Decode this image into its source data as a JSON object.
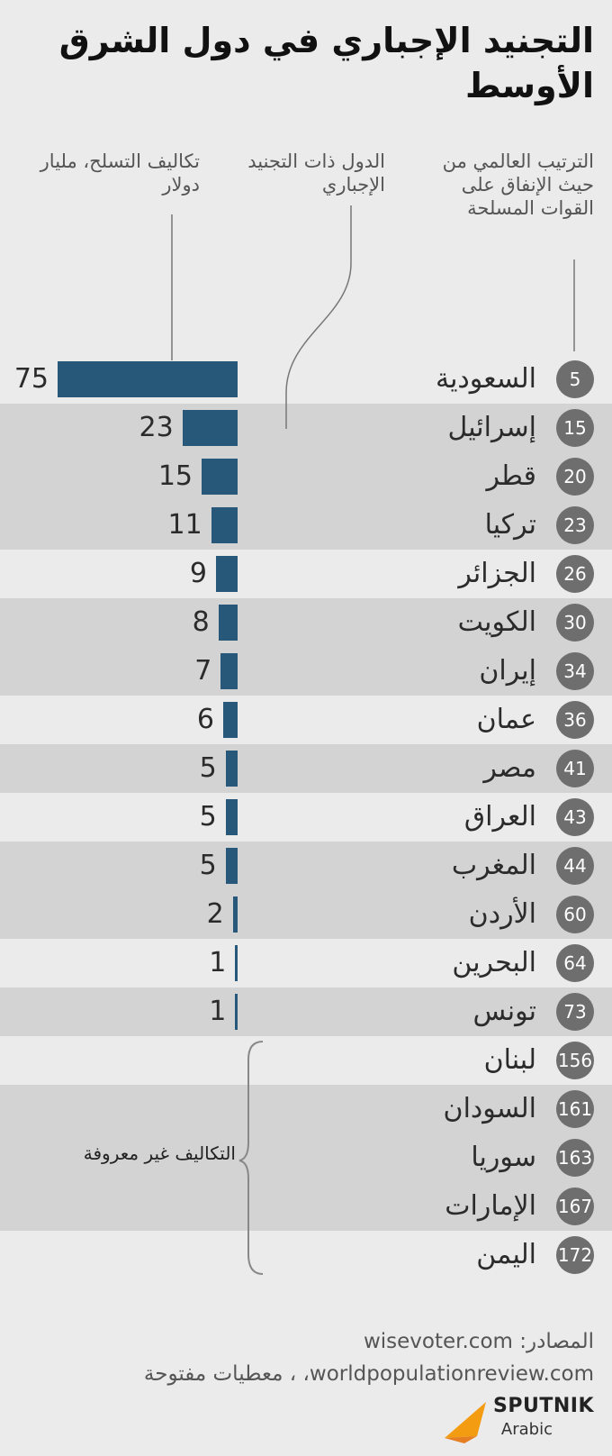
{
  "title": "التجنيد الإجباري في دول الشرق الأوسط",
  "headers": {
    "rank": "الترتيب العالمي من حيث الإنفاق على القوات المسلحة",
    "country": "الدول ذات التجنيد الإجباري",
    "cost": "تكاليف التسلح، مليار دولار"
  },
  "unknown_costs_label": "التكاليف غير معروفة",
  "sources": {
    "line1": "المصادر: wisevoter.com",
    "line2": "worldpopulationreview.com، ، معطيات مفتوحة"
  },
  "logo": {
    "name": "SPUTNIK",
    "sub": "Arabic"
  },
  "colors": {
    "bar": "#275879",
    "rank_badge": "#6e6e6e",
    "stripe": "#d3d3d3",
    "background": "#ebebeb",
    "logo_accent": "#f39c12"
  },
  "chart_data": {
    "type": "bar",
    "orientation": "horizontal",
    "unit": "مليار دولار",
    "rows": [
      {
        "rank": 5,
        "country": "السعودية",
        "cost": 75
      },
      {
        "rank": 15,
        "country": "إسرائيل",
        "cost": 23
      },
      {
        "rank": 20,
        "country": "قطر",
        "cost": 15
      },
      {
        "rank": 23,
        "country": "تركيا",
        "cost": 11
      },
      {
        "rank": 26,
        "country": "الجزائر",
        "cost": 9
      },
      {
        "rank": 30,
        "country": "الكويت",
        "cost": 8
      },
      {
        "rank": 34,
        "country": "إيران",
        "cost": 7
      },
      {
        "rank": 36,
        "country": "عمان",
        "cost": 6
      },
      {
        "rank": 41,
        "country": "مصر",
        "cost": 5
      },
      {
        "rank": 43,
        "country": "العراق",
        "cost": 5
      },
      {
        "rank": 44,
        "country": "المغرب",
        "cost": 5
      },
      {
        "rank": 60,
        "country": "الأردن",
        "cost": 2
      },
      {
        "rank": 64,
        "country": "البحرين",
        "cost": 1
      },
      {
        "rank": 73,
        "country": "تونس",
        "cost": 1
      },
      {
        "rank": 156,
        "country": "لبنان",
        "cost": null
      },
      {
        "rank": 161,
        "country": "السودان",
        "cost": null
      },
      {
        "rank": 163,
        "country": "سوريا",
        "cost": null
      },
      {
        "rank": 167,
        "country": "الإمارات",
        "cost": null
      },
      {
        "rank": 172,
        "country": "اليمن",
        "cost": null
      }
    ]
  }
}
